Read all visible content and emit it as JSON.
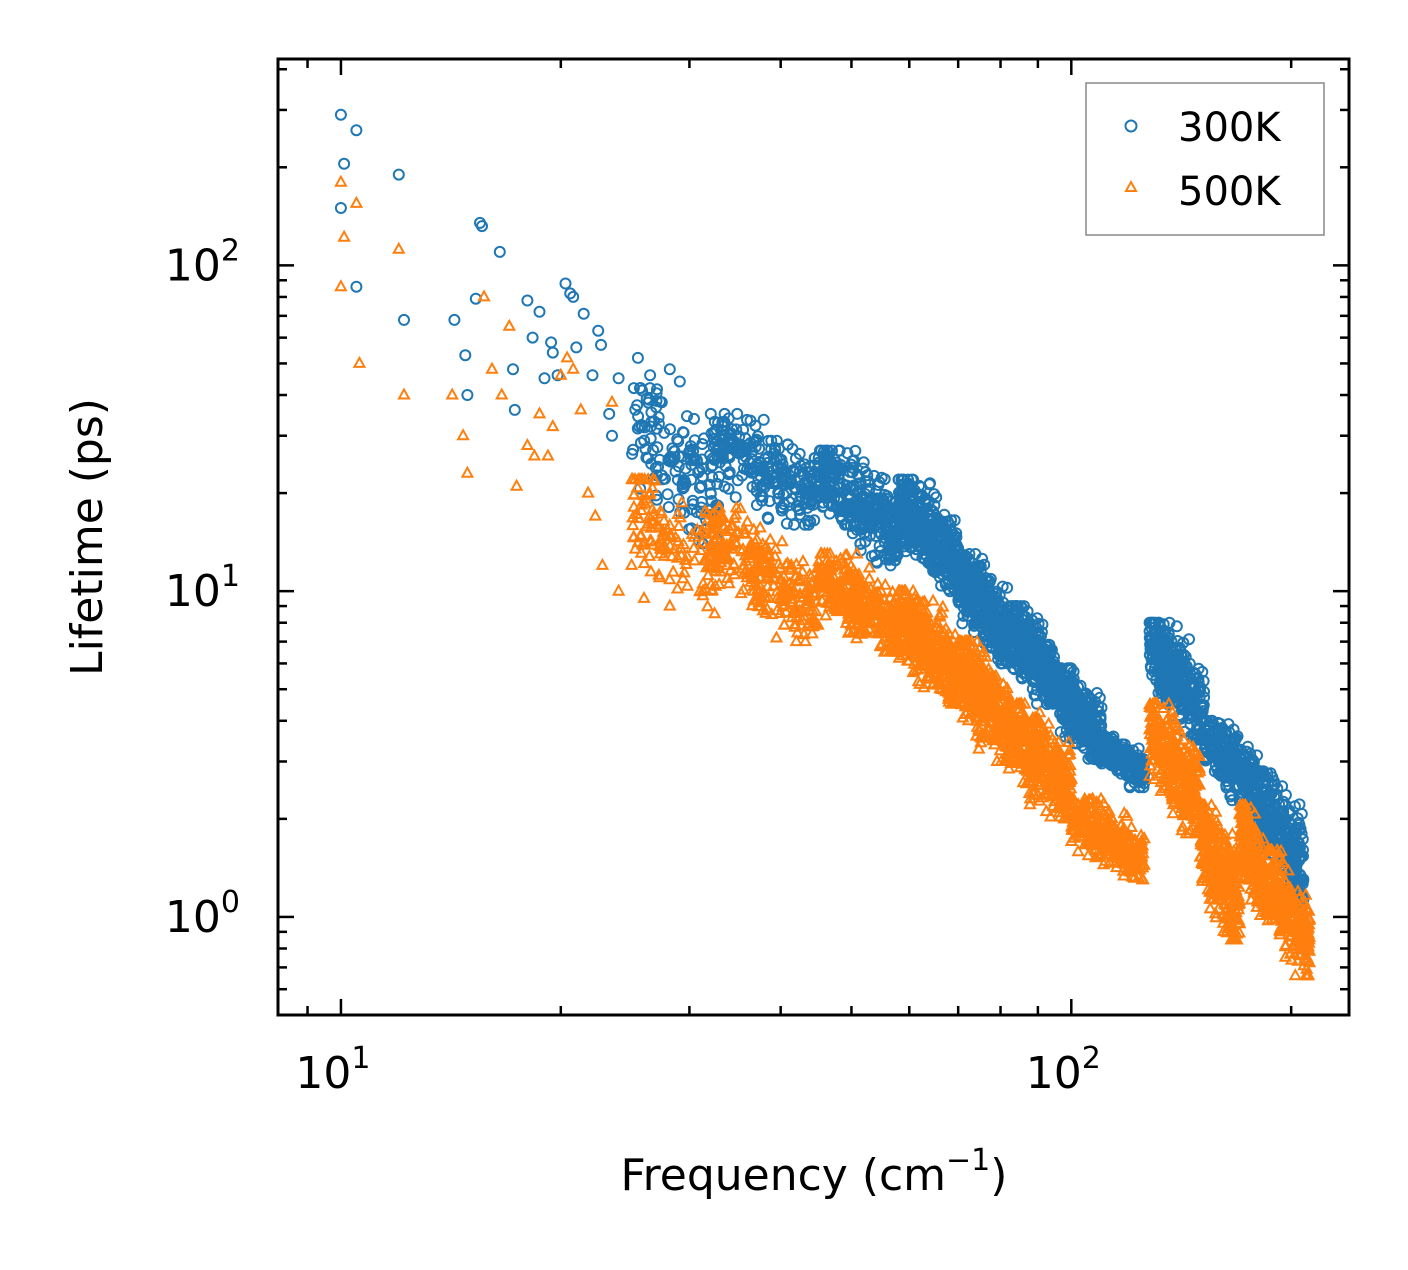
{
  "chart_data": {
    "type": "scatter",
    "xscale": "log",
    "yscale": "log",
    "xlabel": "Frequency (cm",
    "xlabel_sup": "−1",
    "xlabel_end": ")",
    "ylabel": "Lifetime (ps)",
    "xlim": [
      8.2,
      240
    ],
    "ylim": [
      0.5,
      430
    ],
    "x_ticks": [
      {
        "base": "10",
        "exp": "1",
        "value": 10
      },
      {
        "base": "10",
        "exp": "2",
        "value": 100
      }
    ],
    "y_ticks": [
      {
        "base": "10",
        "exp": "0",
        "value": 1
      },
      {
        "base": "10",
        "exp": "1",
        "value": 10
      },
      {
        "base": "10",
        "exp": "2",
        "value": 100
      }
    ],
    "legend": {
      "position": "top-right",
      "entries": [
        "300K",
        "500K"
      ]
    },
    "series": [
      {
        "name": "300K",
        "marker": "circle-open",
        "color": "#1f77b4",
        "points": [
          [
            10.0,
            290
          ],
          [
            10.5,
            260
          ],
          [
            10.1,
            205
          ],
          [
            12.0,
            190
          ],
          [
            10.0,
            150
          ],
          [
            10.5,
            86
          ],
          [
            15.5,
            135
          ],
          [
            15.6,
            132
          ],
          [
            16.5,
            110
          ],
          [
            12.2,
            68
          ],
          [
            14.3,
            68
          ],
          [
            14.8,
            53
          ],
          [
            14.9,
            40
          ],
          [
            15.3,
            79
          ],
          [
            17.2,
            48
          ],
          [
            17.3,
            36
          ],
          [
            18.0,
            78
          ],
          [
            18.3,
            60
          ],
          [
            18.7,
            72
          ],
          [
            19.0,
            45
          ],
          [
            19.4,
            58
          ],
          [
            19.5,
            54
          ],
          [
            19.8,
            46
          ],
          [
            20.3,
            88
          ],
          [
            20.6,
            82
          ],
          [
            20.8,
            80
          ],
          [
            21.0,
            56
          ],
          [
            21.5,
            71
          ],
          [
            22.1,
            46
          ],
          [
            22.5,
            63
          ],
          [
            22.7,
            57
          ],
          [
            23.3,
            35
          ],
          [
            23.5,
            30
          ],
          [
            24.0,
            45
          ],
          [
            25.5,
            52
          ],
          [
            26.5,
            46
          ],
          [
            27.5,
            38
          ],
          [
            28.2,
            48
          ],
          [
            29.1,
            44
          ]
        ],
        "clusters": [
          {
            "x": [
              25,
              33
            ],
            "y": [
              14,
              42
            ],
            "n": 140
          },
          {
            "x": [
              32,
              45
            ],
            "y": [
              16,
              35
            ],
            "n": 260
          },
          {
            "x": [
              45,
              58
            ],
            "y": [
              12,
              27
            ],
            "n": 320
          },
          {
            "x": [
              58,
              70
            ],
            "y": [
              10,
              22
            ],
            "n": 380
          },
          {
            "x": [
              70,
              82
            ],
            "y": [
              6,
              13
            ],
            "n": 380
          },
          {
            "x": [
              82,
              95
            ],
            "y": [
              4.5,
              9
            ],
            "n": 360
          },
          {
            "x": [
              95,
              110
            ],
            "y": [
              3,
              5.8
            ],
            "n": 320
          },
          {
            "x": [
              110,
              126
            ],
            "y": [
              2.5,
              3.6
            ],
            "n": 220
          },
          {
            "x": [
              128,
              152
            ],
            "y": [
              3.5,
              8
            ],
            "n": 360
          },
          {
            "x": [
              152,
              180
            ],
            "y": [
              2.2,
              4
            ],
            "n": 320
          },
          {
            "x": [
              180,
              208
            ],
            "y": [
              1.05,
              2.8
            ],
            "n": 300
          }
        ]
      },
      {
        "name": "500K",
        "marker": "triangle-open",
        "color": "#ff7f0e",
        "points": [
          [
            10.0,
            180
          ],
          [
            10.5,
            155
          ],
          [
            10.1,
            122
          ],
          [
            12.0,
            112
          ],
          [
            10.0,
            86
          ],
          [
            10.6,
            50
          ],
          [
            12.2,
            40
          ],
          [
            14.2,
            40
          ],
          [
            14.7,
            30
          ],
          [
            14.9,
            23
          ],
          [
            15.7,
            80
          ],
          [
            16.1,
            48
          ],
          [
            16.6,
            40
          ],
          [
            17.0,
            65
          ],
          [
            17.4,
            21
          ],
          [
            18.0,
            28
          ],
          [
            18.4,
            26
          ],
          [
            18.7,
            35
          ],
          [
            19.2,
            26
          ],
          [
            19.5,
            32
          ],
          [
            20.0,
            46
          ],
          [
            20.4,
            52
          ],
          [
            20.8,
            48
          ],
          [
            21.3,
            36
          ],
          [
            21.8,
            20
          ],
          [
            22.3,
            17
          ],
          [
            22.8,
            12
          ],
          [
            23.5,
            38
          ],
          [
            24.0,
            10
          ],
          [
            25.0,
            12
          ],
          [
            26.0,
            9.5
          ],
          [
            27.3,
            11
          ],
          [
            28.2,
            9
          ]
        ],
        "clusters": [
          {
            "x": [
              25,
              33
            ],
            "y": [
              8.5,
              22
            ],
            "n": 140
          },
          {
            "x": [
              32,
              45
            ],
            "y": [
              7,
              18
            ],
            "n": 280
          },
          {
            "x": [
              45,
              58
            ],
            "y": [
              6.5,
              13
            ],
            "n": 320
          },
          {
            "x": [
              58,
              70
            ],
            "y": [
              4.5,
              10
            ],
            "n": 380
          },
          {
            "x": [
              70,
              82
            ],
            "y": [
              3,
              7
            ],
            "n": 380
          },
          {
            "x": [
              82,
              100
            ],
            "y": [
              2.0,
              4.5
            ],
            "n": 360
          },
          {
            "x": [
              100,
              126
            ],
            "y": [
              1.3,
              2.3
            ],
            "n": 300
          },
          {
            "x": [
              128,
              150
            ],
            "y": [
              1.8,
              4.5
            ],
            "n": 340
          },
          {
            "x": [
              150,
              170
            ],
            "y": [
              0.85,
              2.2
            ],
            "n": 320
          },
          {
            "x": [
              170,
              185
            ],
            "y": [
              1.0,
              2.2
            ],
            "n": 220
          },
          {
            "x": [
              185,
              212
            ],
            "y": [
              0.66,
              1.6
            ],
            "n": 240
          }
        ]
      }
    ]
  }
}
